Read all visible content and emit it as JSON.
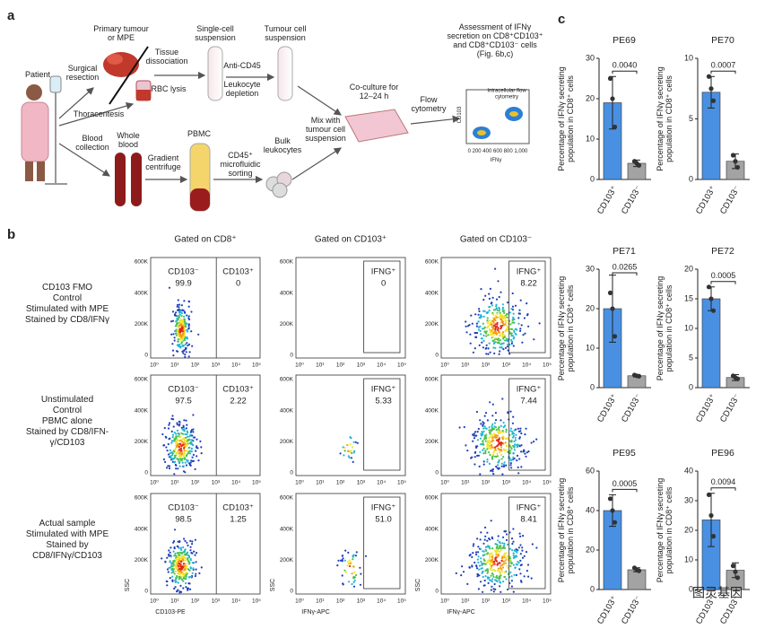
{
  "panel_a": {
    "letter": "a",
    "labels": [
      {
        "lines": [
          "Patient"
        ]
      },
      {
        "lines": [
          "Primary tumour",
          "or MPE"
        ]
      },
      {
        "lines": [
          "Surgical",
          "resection"
        ]
      },
      {
        "lines": [
          "Thoracentesis"
        ]
      },
      {
        "lines": [
          "Tissue",
          "dissociation"
        ]
      },
      {
        "lines": [
          "RBC lysis"
        ]
      },
      {
        "lines": [
          "Single-cell",
          "suspension"
        ]
      },
      {
        "lines": [
          "Anti-CD45"
        ]
      },
      {
        "lines": [
          "Leukocyte",
          "depletion"
        ]
      },
      {
        "lines": [
          "Tumour cell",
          "suspension"
        ]
      },
      {
        "lines": [
          "Blood",
          "collection"
        ]
      },
      {
        "lines": [
          "Whole",
          "blood"
        ]
      },
      {
        "lines": [
          "Gradient",
          "centrifuge"
        ]
      },
      {
        "lines": [
          "PBMC"
        ]
      },
      {
        "lines": [
          "CD45⁺",
          "microfluidic",
          "sorting"
        ]
      },
      {
        "lines": [
          "Bulk",
          "leukocytes"
        ]
      },
      {
        "lines": [
          "Mix with",
          "tumour cell",
          "suspension"
        ]
      },
      {
        "lines": [
          "Co-culture for",
          "12–24 h"
        ]
      },
      {
        "lines": [
          "Flow",
          "cytometry"
        ]
      },
      {
        "lines": [
          "Assessment of IFNγ",
          "secretion on CD8⁺CD103⁺",
          "and CD8⁺CD103⁻ cells",
          "(Fig. 6b,c)"
        ]
      },
      {
        "lines": [
          "Intracellular flow",
          "cytometry"
        ]
      },
      {
        "lines": [
          "CD103"
        ]
      },
      {
        "lines": [
          "IFNγ"
        ]
      },
      {
        "lines": [
          "0 200 400 600 800 1,000"
        ]
      }
    ]
  },
  "panel_b": {
    "letter": "b",
    "column_titles": [
      "Gated on CD8⁺",
      "Gated on CD103⁺",
      "Gated on CD103⁻"
    ],
    "row_labels": [
      [
        "CD103 FMO",
        "Control",
        "Stimulated with MPE",
        "Stained by CD8/IFNγ"
      ],
      [
        "Unstimulated",
        "Control",
        "PBMC alone",
        "Stained by CD8/IFN-",
        "γ/CD103"
      ],
      [
        "Actual sample",
        "Stimulated with MPE",
        "Stained by",
        "CD8/IFNγ/CD103"
      ]
    ],
    "y_ticks": [
      "600K",
      "400K",
      "200K",
      "0"
    ],
    "x_ticks": [
      "10⁰",
      "10¹",
      "10²",
      "10³",
      "10⁴",
      "10⁵"
    ],
    "y_axis_label": "SSC",
    "x_axis_labels": [
      "CD103-PE",
      "IFNγ-APC",
      "IFNγ-APC"
    ],
    "plots": [
      [
        [
          {
            "name": "CD103⁻",
            "value": "99.9"
          },
          {
            "name": "CD103⁺",
            "value": "0"
          }
        ],
        [
          {
            "name": "IFNG⁺",
            "value": "0"
          }
        ],
        [
          {
            "name": "IFNG⁺",
            "value": "8.22"
          }
        ]
      ],
      [
        [
          {
            "name": "CD103⁻",
            "value": "97.5"
          },
          {
            "name": "CD103⁺",
            "value": "2.22"
          }
        ],
        [
          {
            "name": "IFNG⁺",
            "value": "5.33"
          }
        ],
        [
          {
            "name": "IFNG⁺",
            "value": "7.44"
          }
        ]
      ],
      [
        [
          {
            "name": "CD103⁻",
            "value": "98.5"
          },
          {
            "name": "CD103⁺",
            "value": "1.25"
          }
        ],
        [
          {
            "name": "IFNG⁺",
            "value": "51.0"
          }
        ],
        [
          {
            "name": "IFNG⁺",
            "value": "8.41"
          }
        ]
      ]
    ]
  },
  "panel_c": {
    "letter": "c"
  },
  "watermark": "图灵基因",
  "chart_data": [
    {
      "type": "bar",
      "title": "PE69",
      "y_label": [
        "Percentage of IFNγ secreting",
        "population in CD8⁺ cells"
      ],
      "categories": [
        "CD103⁺",
        "CD103⁻"
      ],
      "values": [
        19,
        4
      ],
      "errors": [
        6.5,
        0.8
      ],
      "points": [
        [
          25,
          20,
          13
        ],
        [
          4.5,
          4,
          3.5
        ]
      ],
      "colors": [
        "#4a90e2",
        "#a3a3a3"
      ],
      "ylim": [
        0,
        30
      ],
      "yticks": [
        0,
        10,
        20,
        30
      ],
      "annotation": "0.0040"
    },
    {
      "type": "bar",
      "title": "PE70",
      "y_label": [
        "Percentage of IFNγ secreting",
        "population in CD8⁺ cells"
      ],
      "categories": [
        "CD103⁺",
        "CD103⁻"
      ],
      "values": [
        7.2,
        1.5
      ],
      "errors": [
        1.3,
        0.6
      ],
      "points": [
        [
          8.5,
          7.5,
          6.5
        ],
        [
          2,
          1.5,
          1
        ]
      ],
      "colors": [
        "#4a90e2",
        "#a3a3a3"
      ],
      "ylim": [
        0,
        10
      ],
      "yticks": [
        0,
        5,
        10
      ],
      "annotation": "0.0007"
    },
    {
      "type": "bar",
      "title": "PE71",
      "y_label": [
        "Percentage of IFNγ secreting",
        "population in CD8⁺ cells"
      ],
      "categories": [
        "CD103⁺",
        "CD103⁻"
      ],
      "values": [
        20,
        3
      ],
      "errors": [
        8.5,
        0.3
      ],
      "points": [
        [
          24,
          20,
          13
        ],
        [
          3.2,
          3,
          2.9
        ]
      ],
      "colors": [
        "#4a90e2",
        "#a3a3a3"
      ],
      "ylim": [
        0,
        30
      ],
      "yticks": [
        0,
        10,
        20,
        30
      ],
      "annotation": "0.0265"
    },
    {
      "type": "bar",
      "title": "PE72",
      "y_label": [
        "Percentage of IFNγ secreting",
        "population in CD8⁺ cells"
      ],
      "categories": [
        "CD103⁺",
        "CD103⁻"
      ],
      "values": [
        15,
        1.7
      ],
      "errors": [
        2,
        0.5
      ],
      "points": [
        [
          17,
          15,
          13
        ],
        [
          2,
          1.7,
          1.5
        ]
      ],
      "colors": [
        "#4a90e2",
        "#a3a3a3"
      ],
      "ylim": [
        0,
        20
      ],
      "yticks": [
        0,
        5,
        10,
        15,
        20
      ],
      "annotation": "0.0005"
    },
    {
      "type": "bar",
      "title": "PE95",
      "y_label": [
        "Percentage of IFNγ secreting",
        "population in CD8⁺ cells"
      ],
      "categories": [
        "CD103⁺",
        "CD103⁻"
      ],
      "values": [
        40,
        10
      ],
      "errors": [
        8,
        1
      ],
      "points": [
        [
          46,
          40,
          34
        ],
        [
          11,
          10,
          9.5
        ]
      ],
      "colors": [
        "#4a90e2",
        "#a3a3a3"
      ],
      "ylim": [
        0,
        60
      ],
      "yticks": [
        0,
        20,
        40,
        60
      ],
      "annotation": "0.0005"
    },
    {
      "type": "bar",
      "title": "PE96",
      "y_label": [
        "Percentage of IFNγ secreting",
        "population in CD8⁺ cells"
      ],
      "categories": [
        "CD103⁺",
        "CD103⁻"
      ],
      "values": [
        23.5,
        6.5
      ],
      "errors": [
        9,
        2.5
      ],
      "points": [
        [
          32,
          25,
          18
        ],
        [
          8,
          6,
          4
        ]
      ],
      "colors": [
        "#4a90e2",
        "#a3a3a3"
      ],
      "ylim": [
        0,
        40
      ],
      "yticks": [
        0,
        10,
        20,
        30,
        40
      ],
      "annotation": "0.0094"
    }
  ]
}
